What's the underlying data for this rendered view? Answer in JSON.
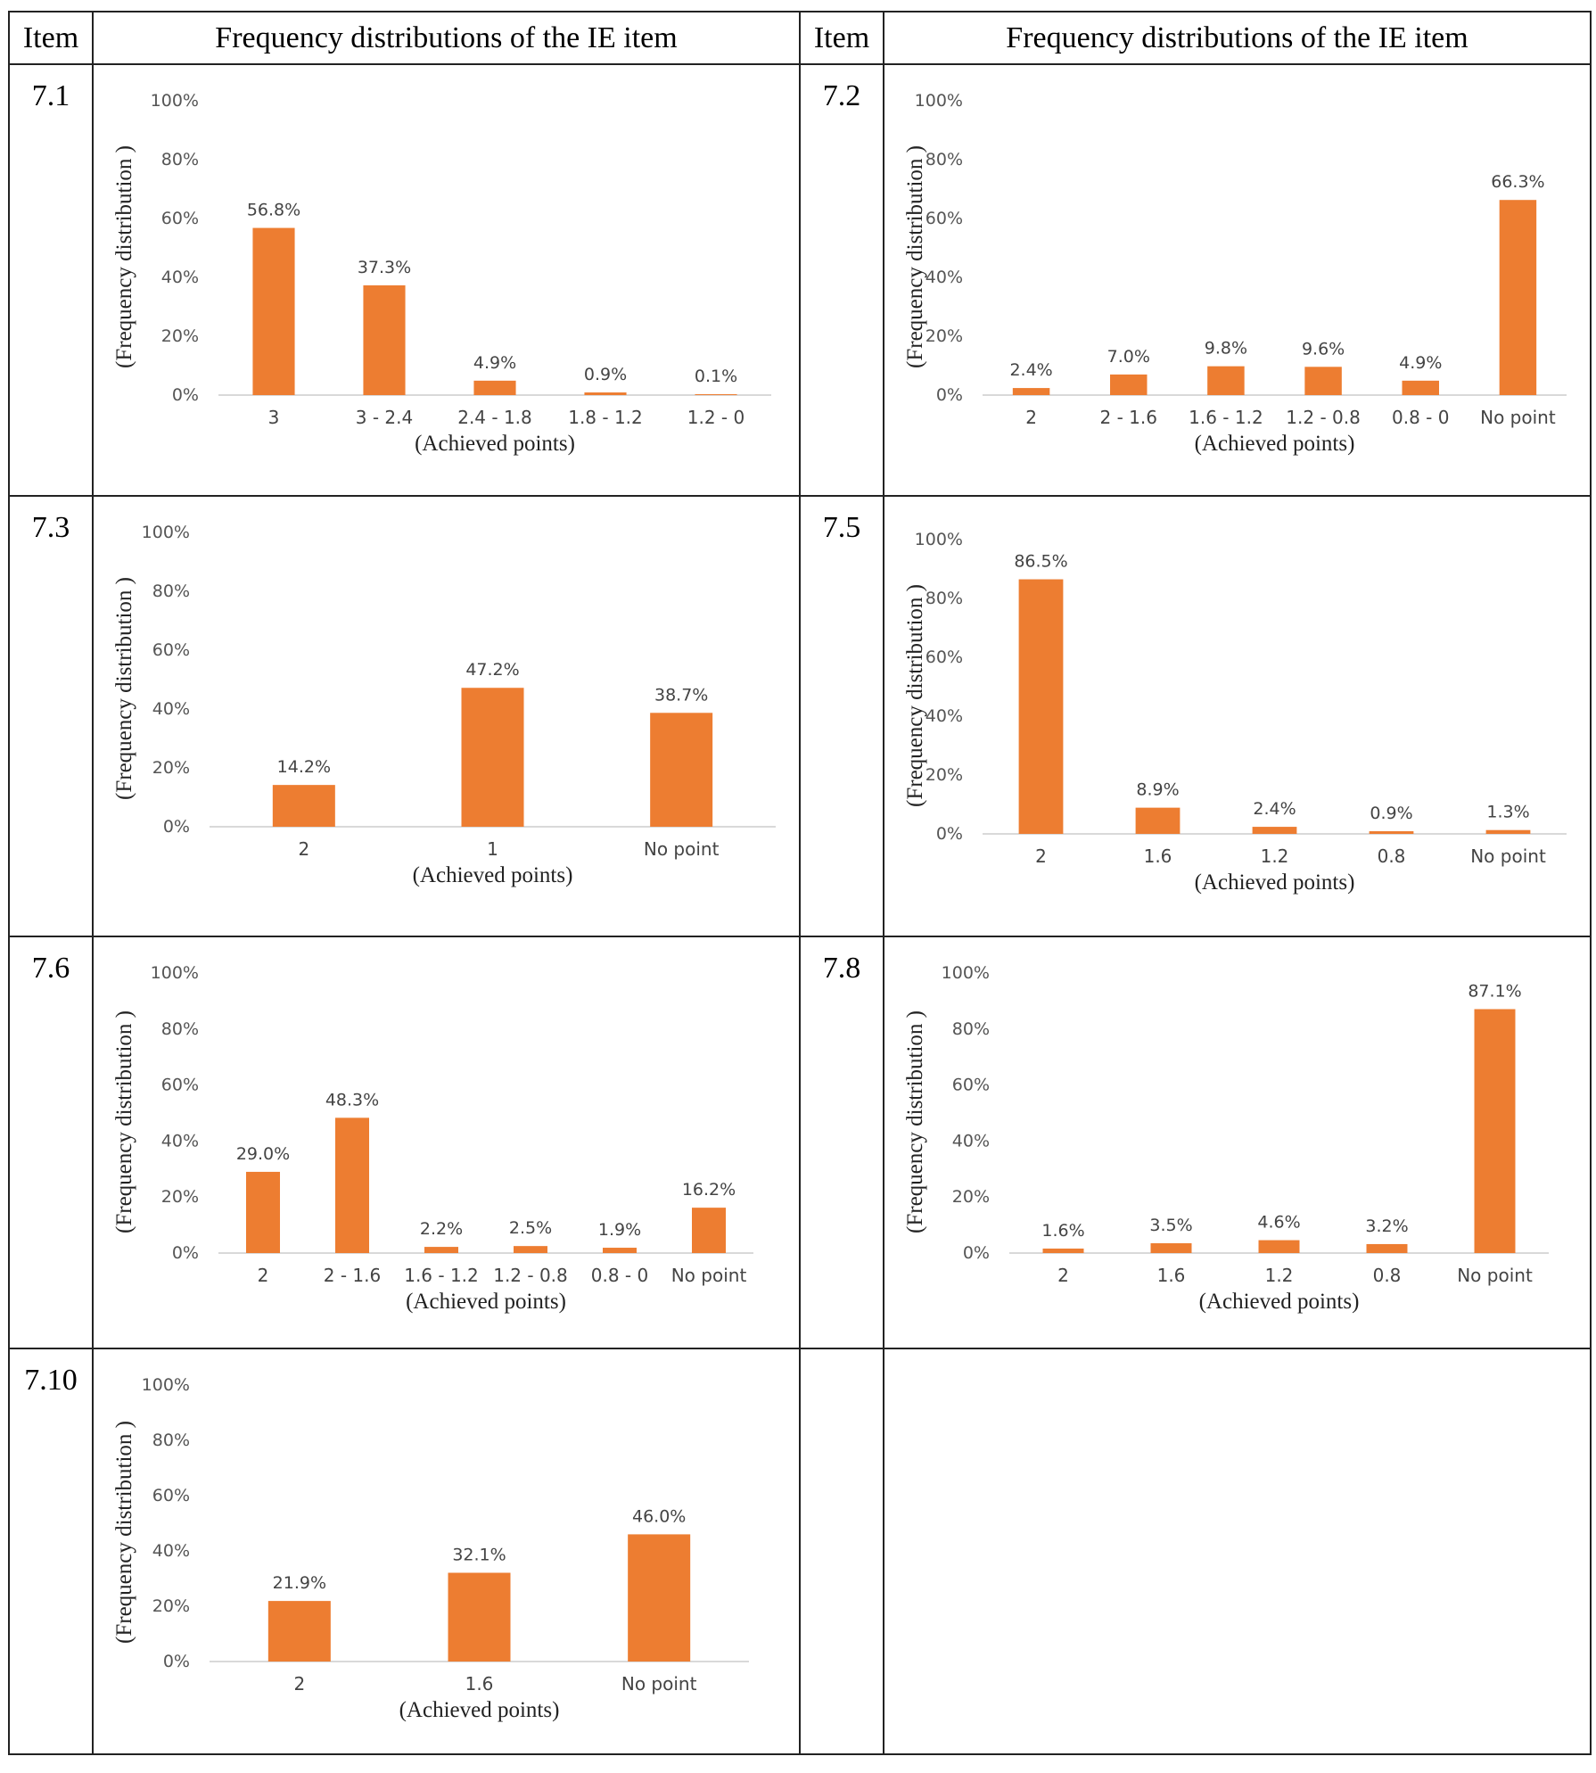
{
  "header": {
    "item_label": "Item",
    "freq_label": "Frequency distributions of the IE item"
  },
  "chart_data": [
    {
      "item": "7.1",
      "type": "bar",
      "categories": [
        "3",
        "3 - 2.4",
        "2.4 - 1.8",
        "1.8 - 1.2",
        "1.2 - 0"
      ],
      "values": [
        56.8,
        37.3,
        4.9,
        0.9,
        0.1
      ],
      "value_labels": [
        "56.8%",
        "37.3%",
        "4.9%",
        "0.9%",
        "0.1%"
      ],
      "xlabel": "(Achieved points)",
      "ylabel": "(Frequency distribution )",
      "ylim": [
        0,
        100
      ],
      "yticks": [
        "0%",
        "20%",
        "40%",
        "60%",
        "80%",
        "100%"
      ],
      "color": "#ED7D31"
    },
    {
      "item": "7.2",
      "type": "bar",
      "categories": [
        "2",
        "2 - 1.6",
        "1.6 - 1.2",
        "1.2 - 0.8",
        "0.8 - 0",
        "No point"
      ],
      "values": [
        2.4,
        7.0,
        9.8,
        9.6,
        4.9,
        66.3
      ],
      "value_labels": [
        "2.4%",
        "7.0%",
        "9.8%",
        "9.6%",
        "4.9%",
        "66.3%"
      ],
      "xlabel": "(Achieved points)",
      "ylabel": "(Frequency distribution )",
      "ylim": [
        0,
        100
      ],
      "yticks": [
        "0%",
        "20%",
        "40%",
        "60%",
        "80%",
        "100%"
      ],
      "color": "#ED7D31"
    },
    {
      "item": "7.3",
      "type": "bar",
      "categories": [
        "2",
        "1",
        "No point"
      ],
      "values": [
        14.2,
        47.2,
        38.7
      ],
      "value_labels": [
        "14.2%",
        "47.2%",
        "38.7%"
      ],
      "xlabel": "(Achieved points)",
      "ylabel": "(Frequency distribution )",
      "ylim": [
        0,
        100
      ],
      "yticks": [
        "0%",
        "20%",
        "40%",
        "60%",
        "80%",
        "100%"
      ],
      "color": "#ED7D31"
    },
    {
      "item": "7.5",
      "type": "bar",
      "categories": [
        "2",
        "1.6",
        "1.2",
        "0.8",
        "No point"
      ],
      "values": [
        86.5,
        8.9,
        2.4,
        0.9,
        1.3
      ],
      "value_labels": [
        "86.5%",
        "8.9%",
        "2.4%",
        "0.9%",
        "1.3%"
      ],
      "xlabel": "(Achieved points)",
      "ylabel": "(Frequency distribution )",
      "ylim": [
        0,
        100
      ],
      "yticks": [
        "0%",
        "20%",
        "40%",
        "60%",
        "80%",
        "100%"
      ],
      "color": "#ED7D31"
    },
    {
      "item": "7.6",
      "type": "bar",
      "categories": [
        "2",
        "2 - 1.6",
        "1.6 - 1.2",
        "1.2 - 0.8",
        "0.8 - 0",
        "No point"
      ],
      "values": [
        29.0,
        48.3,
        2.2,
        2.5,
        1.9,
        16.2
      ],
      "value_labels": [
        "29.0%",
        "48.3%",
        "2.2%",
        "2.5%",
        "1.9%",
        "16.2%"
      ],
      "xlabel": "(Achieved points)",
      "ylabel": "(Frequency distribution )",
      "ylim": [
        0,
        100
      ],
      "yticks": [
        "0%",
        "20%",
        "40%",
        "60%",
        "80%",
        "100%"
      ],
      "color": "#ED7D31"
    },
    {
      "item": "7.8",
      "type": "bar",
      "categories": [
        "2",
        "1.6",
        "1.2",
        "0.8",
        "No point"
      ],
      "values": [
        1.6,
        3.5,
        4.6,
        3.2,
        87.1
      ],
      "value_labels": [
        "1.6%",
        "3.5%",
        "4.6%",
        "3.2%",
        "87.1%"
      ],
      "xlabel": "(Achieved points)",
      "ylabel": "(Frequency distribution )",
      "ylim": [
        0,
        100
      ],
      "yticks": [
        "0%",
        "20%",
        "40%",
        "60%",
        "80%",
        "100%"
      ],
      "color": "#ED7D31"
    },
    {
      "item": "7.10",
      "type": "bar",
      "categories": [
        "2",
        "1.6",
        "No point"
      ],
      "values": [
        21.9,
        32.1,
        46.0
      ],
      "value_labels": [
        "21.9%",
        "32.1%",
        "46.0%"
      ],
      "xlabel": "(Achieved points)",
      "ylabel": "(Frequency distribution )",
      "ylim": [
        0,
        100
      ],
      "yticks": [
        "0%",
        "20%",
        "40%",
        "60%",
        "80%",
        "100%"
      ],
      "color": "#ED7D31"
    }
  ]
}
